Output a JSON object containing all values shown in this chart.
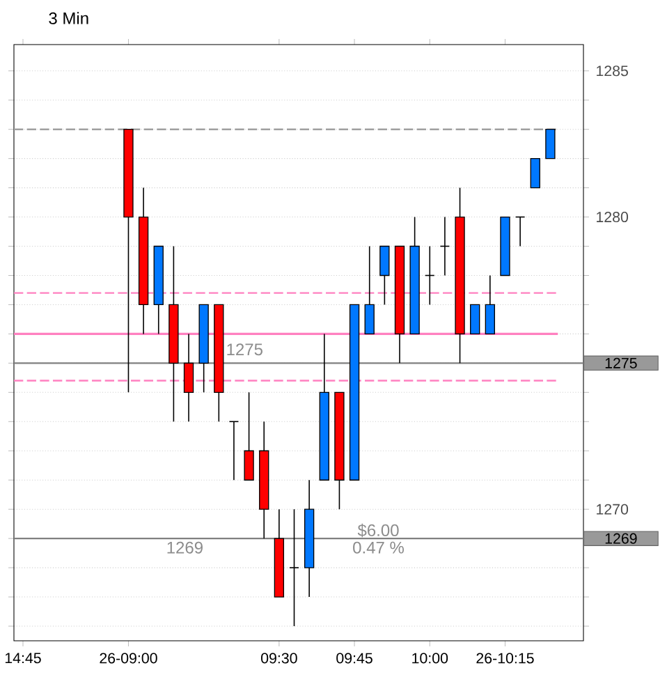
{
  "chart_data": {
    "type": "candlestick",
    "title": "3 Min",
    "categories": [
      "14:45",
      null,
      null,
      null,
      null,
      null,
      null,
      "26-09:00",
      null,
      null,
      null,
      null,
      null,
      null,
      null,
      null,
      null,
      "09:30",
      null,
      null,
      null,
      null,
      "09:45",
      null,
      null,
      null,
      null,
      "10:00",
      null,
      null,
      null,
      null,
      "26-10:15",
      null,
      null,
      null
    ],
    "ohlc": [
      null,
      null,
      null,
      null,
      null,
      null,
      null,
      [
        1283,
        1283,
        1274,
        1280
      ],
      [
        1280,
        1281,
        1276,
        1277
      ],
      [
        1277,
        1279,
        1276,
        1279
      ],
      [
        1277,
        1279,
        1273,
        1275
      ],
      [
        1275,
        1276,
        1273,
        1274
      ],
      [
        1275,
        1277,
        1274,
        1277
      ],
      [
        1277,
        1277,
        1273,
        1274
      ],
      [
        1273,
        1273,
        1271,
        1273
      ],
      [
        1272,
        1274,
        1271,
        1271
      ],
      [
        1272,
        1273,
        1269,
        1270
      ],
      [
        1269,
        1270,
        1267,
        1267
      ],
      [
        1268,
        1270,
        1266,
        1268
      ],
      [
        1268,
        1271,
        1267,
        1270
      ],
      [
        1271,
        1276,
        1271,
        1274
      ],
      [
        1274,
        1274,
        1270,
        1271
      ],
      [
        1271,
        1277,
        1271,
        1277
      ],
      [
        1276,
        1279,
        1276,
        1277
      ],
      [
        1278,
        1279,
        1277,
        1279
      ],
      [
        1279,
        1279,
        1275,
        1276
      ],
      [
        1276,
        1280,
        1276,
        1279
      ],
      [
        1278,
        1279,
        1277,
        1278
      ],
      [
        1279,
        1280,
        1278,
        1279
      ],
      [
        1280,
        1281,
        1275,
        1276
      ],
      [
        1276,
        1277,
        1276,
        1277
      ],
      [
        1276,
        1278,
        1276,
        1277
      ],
      [
        1278,
        1280,
        1278,
        1280
      ],
      [
        1280,
        1280,
        1279,
        1280
      ],
      [
        1281,
        1282,
        1281,
        1282
      ],
      [
        1282,
        1283,
        1282,
        1283
      ]
    ],
    "colors": [
      null,
      null,
      null,
      null,
      null,
      null,
      null,
      "#ff0000",
      "#ff0000",
      "#0078ff",
      "#ff0000",
      "#ff0000",
      "#0078ff",
      "#ff0000",
      "#000000",
      "#ff0000",
      "#ff0000",
      "#ff0000",
      "#000000",
      "#0078ff",
      "#0078ff",
      "#ff0000",
      "#0078ff",
      "#0078ff",
      "#0078ff",
      "#ff0000",
      "#0078ff",
      "#000000",
      "#000000",
      "#ff0000",
      "#0078ff",
      "#0078ff",
      "#0078ff",
      "#000000",
      "#0078ff",
      "#0078ff"
    ],
    "ylim": [
      1265.5,
      1285.9
    ],
    "yticks": [
      {
        "value": 1266,
        "label": null
      },
      {
        "value": 1267,
        "label": null
      },
      {
        "value": 1268,
        "label": null
      },
      {
        "value": 1269,
        "label": null
      },
      1270,
      {
        "value": 1271,
        "label": null
      },
      {
        "value": 1272,
        "label": null
      },
      {
        "value": 1273,
        "label": null
      },
      {
        "value": 1274,
        "label": null
      },
      {
        "value": 1275,
        "label": null
      },
      {
        "value": 1276,
        "label": null
      },
      {
        "value": 1277,
        "label": null
      },
      {
        "value": 1278,
        "label": null
      },
      {
        "value": 1279,
        "label": null
      },
      1280,
      {
        "value": 1281,
        "label": null
      },
      {
        "value": 1282,
        "label": null
      },
      {
        "value": 1283,
        "label": null
      },
      {
        "value": 1284,
        "label": null
      },
      1285
    ],
    "grid": "y",
    "ref_lines": [
      {
        "axis": "y",
        "value": 1283,
        "color": "#a0a0a0",
        "line_style": "dashed"
      },
      {
        "axis": "y",
        "value": 1277.4,
        "color": "#ff80c0",
        "line_style": "dashed"
      },
      {
        "axis": "y",
        "value": 1276,
        "color": "#ff80c0",
        "line_style": "solid"
      },
      {
        "axis": "y",
        "value": 1274.4,
        "color": "#ff80c0",
        "line_style": "dashed"
      },
      {
        "axis": "y",
        "value": 1275,
        "color": "#808080",
        "line_style": "solid",
        "label": "1275"
      },
      {
        "axis": "y",
        "value": 1269,
        "color": "#808080",
        "line_style": "solid",
        "label": "1269"
      }
    ],
    "annotations": [
      "1275",
      "1269",
      "$6.00",
      "0.47 %"
    ]
  }
}
